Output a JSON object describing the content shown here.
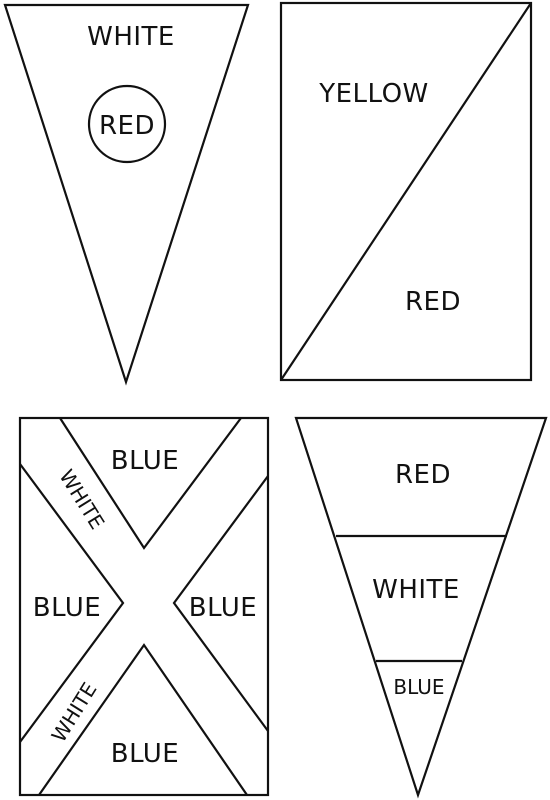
{
  "flags": {
    "pennant_top_left": {
      "field_label": "WHITE",
      "disc_label": "RED"
    },
    "rect_top_right": {
      "upper_label": "YELLOW",
      "lower_label": "RED"
    },
    "saltire_bottom_left": {
      "top_label": "BLUE",
      "left_label": "BLUE",
      "right_label": "BLUE",
      "bottom_label": "BLUE",
      "cross_upper_label": "WHITE",
      "cross_lower_label": "WHITE"
    },
    "pennant_bottom_right": {
      "top_band_label": "RED",
      "middle_band_label": "WHITE",
      "tip_band_label": "BLUE"
    }
  }
}
